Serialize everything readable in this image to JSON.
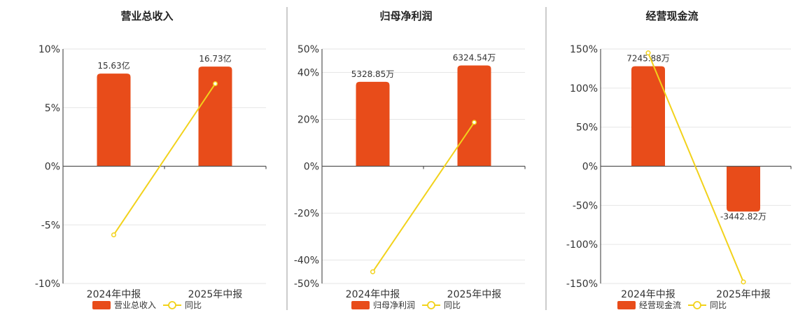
{
  "colors": {
    "bar": "#E84C1A",
    "line": "#F2D21B",
    "grid": "#e6e6e6"
  },
  "legend_line_label": "同比",
  "chart_data": [
    {
      "type": "bar",
      "title": "营业总收入",
      "bar_series_name": "营业总收入",
      "line_series_name": "同比",
      "categories": [
        "2024年中报",
        "2025年中报"
      ],
      "bar_labels": [
        "15.63亿",
        "16.73亿"
      ],
      "bar_pct": [
        7.9,
        8.5
      ],
      "yoy": [
        -5.85,
        7.04
      ],
      "ylim": [
        -10,
        10
      ],
      "yticks": [
        -10,
        -5,
        0,
        5,
        10
      ]
    },
    {
      "type": "bar",
      "title": "归母净利润",
      "bar_series_name": "归母净利润",
      "line_series_name": "同比",
      "categories": [
        "2024年中报",
        "2025年中报"
      ],
      "bar_labels": [
        "5328.85万",
        "6324.54万"
      ],
      "bar_pct": [
        36,
        43
      ],
      "yoy": [
        -45.0,
        18.7
      ],
      "ylim": [
        -50,
        50
      ],
      "yticks": [
        -50,
        -40,
        -20,
        0,
        20,
        40,
        50
      ]
    },
    {
      "type": "bar",
      "title": "经营现金流",
      "bar_series_name": "经营现金流",
      "line_series_name": "同比",
      "categories": [
        "2024年中报",
        "2025年中报"
      ],
      "bar_labels": [
        "7245.88万",
        "-3442.82万"
      ],
      "bar_pct": [
        128,
        -58
      ],
      "yoy": [
        145,
        -148
      ],
      "ylim": [
        -150,
        150
      ],
      "yticks": [
        -150,
        -100,
        -50,
        0,
        50,
        100,
        150
      ]
    }
  ]
}
